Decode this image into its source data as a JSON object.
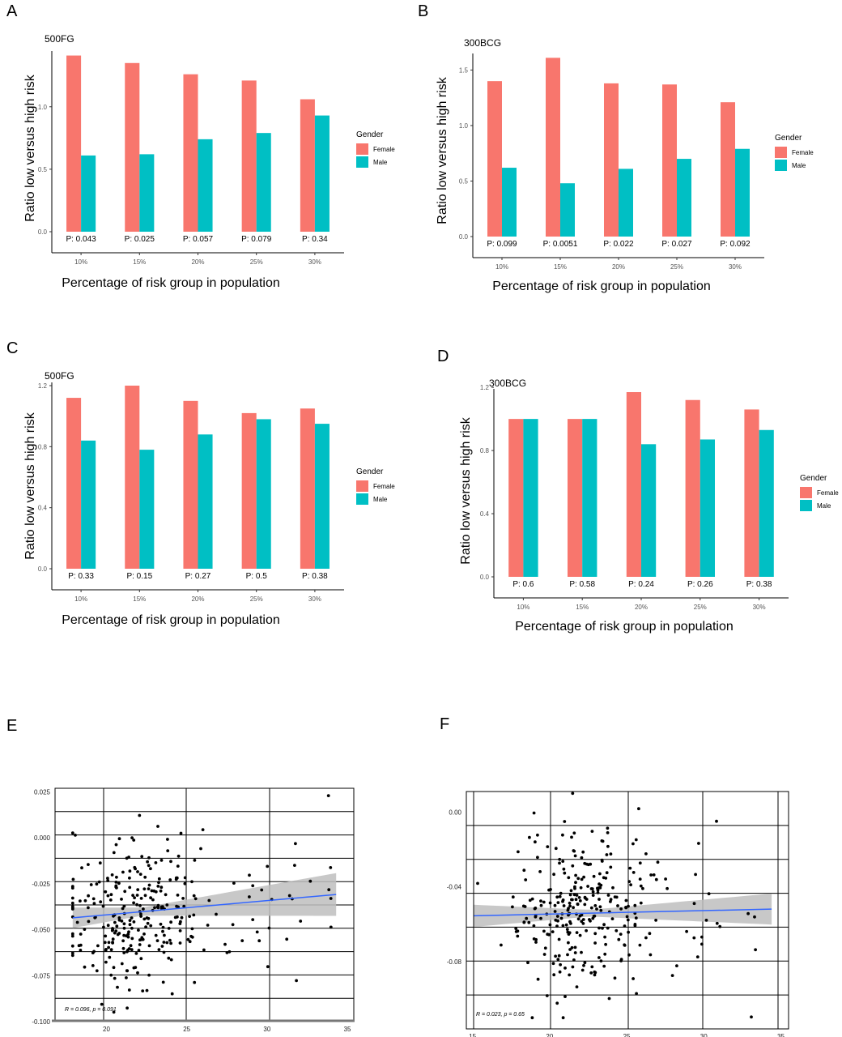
{
  "chart_data": [
    {
      "panel": "A",
      "type": "bar",
      "title": "500FG",
      "xlabel": "Percentage of risk group in population",
      "ylabel": "Ratio low versus high risk",
      "categories": [
        "10%",
        "15%",
        "20%",
        "25%",
        "30%"
      ],
      "yticks": [
        0.0,
        0.5,
        1.0
      ],
      "ylim": [
        0,
        1.42
      ],
      "series": [
        {
          "name": "Female",
          "color": "#F8766D",
          "values": [
            1.41,
            1.35,
            1.26,
            1.21,
            1.06
          ]
        },
        {
          "name": "Male",
          "color": "#00BFC4",
          "values": [
            0.61,
            0.62,
            0.74,
            0.79,
            0.93
          ]
        }
      ],
      "p_values": [
        "P: 0.043",
        "P: 0.025",
        "P: 0.057",
        "P: 0.079",
        "P: 0.34"
      ],
      "legend_title": "Gender"
    },
    {
      "panel": "B",
      "type": "bar",
      "title": "300BCG",
      "xlabel": "Percentage of risk group in population",
      "ylabel": "Ratio low versus high risk",
      "categories": [
        "10%",
        "15%",
        "20%",
        "25%",
        "30%"
      ],
      "yticks": [
        0.0,
        0.5,
        1.0,
        1.5
      ],
      "ylim": [
        0,
        1.62
      ],
      "series": [
        {
          "name": "Female",
          "color": "#F8766D",
          "values": [
            1.4,
            1.61,
            1.38,
            1.37,
            1.21
          ]
        },
        {
          "name": "Male",
          "color": "#00BFC4",
          "values": [
            0.62,
            0.48,
            0.61,
            0.7,
            0.79
          ]
        }
      ],
      "p_values": [
        "P: 0.099",
        "P: 0.0051",
        "P: 0.022",
        "P: 0.027",
        "P: 0.092"
      ],
      "legend_title": "Gender"
    },
    {
      "panel": "C",
      "type": "bar",
      "title": "500FG",
      "xlabel": "Percentage of risk group in population",
      "ylabel": "Ratio low versus high risk",
      "categories": [
        "10%",
        "15%",
        "20%",
        "25%",
        "30%"
      ],
      "yticks": [
        0.0,
        0.4,
        0.8,
        1.2
      ],
      "ylim": [
        0,
        1.2
      ],
      "series": [
        {
          "name": "Female",
          "color": "#F8766D",
          "values": [
            1.12,
            1.2,
            1.1,
            1.02,
            1.05
          ]
        },
        {
          "name": "Male",
          "color": "#00BFC4",
          "values": [
            0.84,
            0.78,
            0.88,
            0.98,
            0.95
          ]
        }
      ],
      "p_values": [
        "P: 0.33",
        "P: 0.15",
        "P: 0.27",
        "P: 0.5",
        "P: 0.38"
      ],
      "legend_title": "Gender"
    },
    {
      "panel": "D",
      "type": "bar",
      "title": "300BCG",
      "xlabel": "Percentage of risk group in population",
      "ylabel": "Ratio low versus high risk",
      "categories": [
        "10%",
        "15%",
        "20%",
        "25%",
        "30%"
      ],
      "yticks": [
        0.0,
        0.4,
        0.8,
        1.2
      ],
      "ylim": [
        0,
        1.17
      ],
      "series": [
        {
          "name": "Female",
          "color": "#F8766D",
          "values": [
            1.0,
            1.0,
            1.17,
            1.12,
            1.06
          ]
        },
        {
          "name": "Male",
          "color": "#00BFC4",
          "values": [
            1.0,
            1.0,
            0.84,
            0.87,
            0.93
          ]
        }
      ],
      "p_values": [
        "P: 0.6",
        "P: 0.58",
        "P: 0.24",
        "P: 0.26",
        "P: 0.38"
      ],
      "legend_title": "Gender"
    },
    {
      "panel": "E",
      "type": "scatter",
      "xlim": [
        16.8,
        35.4
      ],
      "ylim": [
        -0.1,
        0.027
      ],
      "xticks": [
        20,
        25,
        30,
        35
      ],
      "yticks": [
        -0.1,
        -0.075,
        -0.05,
        -0.025,
        0.0,
        0.025
      ],
      "ytick_labels": [
        "-0.100",
        "-0.075",
        "-0.050",
        "-0.025",
        "0.000",
        "0.025"
      ],
      "fit_line": {
        "x": [
          17.9,
          34.3
        ],
        "y": [
          -0.0435,
          -0.0308
        ]
      },
      "annotation": "R = 0.096, p = 0.091",
      "n_points": 300,
      "x_range_points": [
        17.9,
        34.3
      ],
      "y_range_points": [
        -0.095,
        0.023
      ]
    },
    {
      "panel": "F",
      "type": "scatter",
      "xlim": [
        14.6,
        35.5
      ],
      "ylim": [
        -0.116,
        0.011
      ],
      "xticks": [
        15,
        20,
        25,
        30,
        35
      ],
      "yticks": [
        -0.08,
        -0.04,
        0.0
      ],
      "ytick_labels": [
        "-0.08",
        "-0.04",
        "0.00"
      ],
      "fit_line": {
        "x": [
          15.1,
          34.4
        ],
        "y": [
          -0.0555,
          -0.0519
        ]
      },
      "annotation": "R = 0.023, p = 0.65",
      "n_points": 300,
      "x_range_points": [
        15.1,
        34.4
      ],
      "y_range_points": [
        -0.11,
        0.01
      ]
    }
  ],
  "panel_letters": [
    "A",
    "B",
    "C",
    "D",
    "E",
    "F"
  ],
  "colors": {
    "female": "#F8766D",
    "male": "#00BFC4",
    "fit": "#3366FF",
    "band": "#BEBEBE"
  }
}
